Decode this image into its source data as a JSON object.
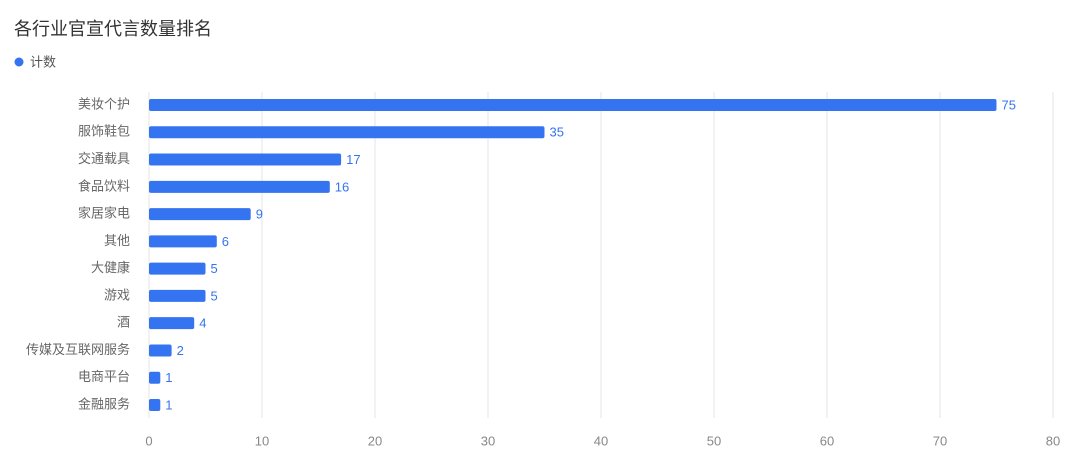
{
  "chart_data": {
    "type": "bar",
    "orientation": "horizontal",
    "title": "各行业官宣代言数量排名",
    "series": [
      {
        "name": "计数",
        "color": "#3574f0",
        "values": [
          75,
          35,
          17,
          16,
          9,
          6,
          5,
          5,
          4,
          2,
          1,
          1
        ]
      }
    ],
    "categories": [
      "美妆个护",
      "服饰鞋包",
      "交通载具",
      "食品饮料",
      "家居家电",
      "其他",
      "大健康",
      "游戏",
      "酒",
      "传媒及互联网服务",
      "电商平台",
      "金融服务"
    ],
    "xlim": [
      0,
      80
    ],
    "xticks": [
      0,
      10,
      20,
      30,
      40,
      50,
      60,
      70,
      80
    ],
    "grid": true
  }
}
